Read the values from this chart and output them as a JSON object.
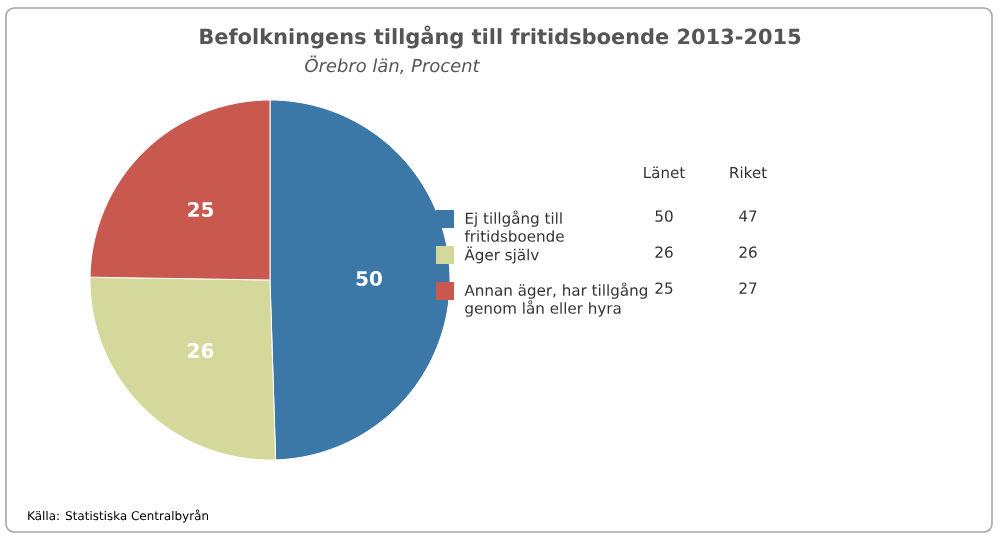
{
  "chart_data": {
    "type": "pie",
    "title": "Befolkningens tillgång till fritidsboende 2013-2015",
    "subtitle": "Örebro län, Procent",
    "categories": [
      "Ej tillgång till fritidsboende",
      "Äger själv",
      "Annan äger, har tillgång genom lån eller hyra"
    ],
    "values": [
      50,
      26,
      25
    ],
    "colors": [
      "#3b77a7",
      "#d4d99b",
      "#c9594f"
    ],
    "data_labels": true,
    "legend": "right",
    "annotations": [
      "Länet",
      "Riket",
      "50",
      "47",
      "26",
      "26",
      "25",
      "27",
      "Källa: Statistiska Centralbyrån"
    ]
  }
}
